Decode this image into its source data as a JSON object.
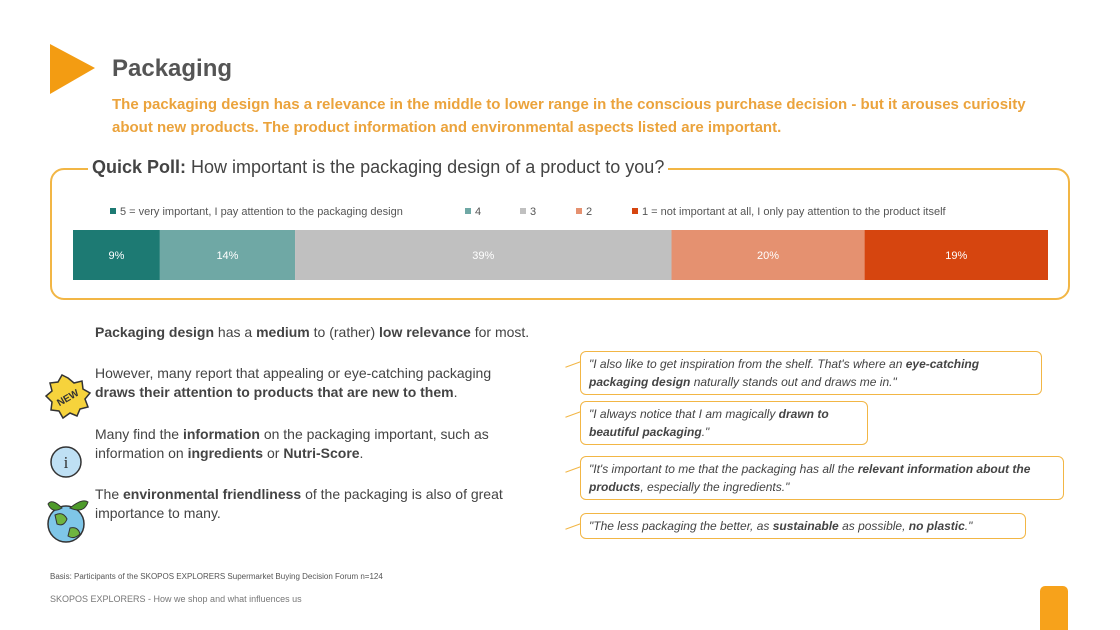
{
  "header": {
    "title": "Packaging",
    "subtitle": "The packaging design has a relevance in the middle to lower range in the conscious purchase decision - but it arouses curiosity about new products. The product information and environmental aspects listed are important."
  },
  "chart_data": {
    "type": "stacked-bar",
    "orientation": "horizontal",
    "title_label": "Quick Poll:",
    "title": "How important is the packaging design of a product to you?",
    "series": [
      {
        "name": "5 =  very important, I pay attention to the packaging design",
        "color": "#1d7a73",
        "values": [
          9
        ],
        "value_labels": [
          "9%"
        ]
      },
      {
        "name": "4",
        "color": "#6fa8a5",
        "values": [
          14
        ],
        "value_labels": [
          "14%"
        ]
      },
      {
        "name": "3",
        "color": "#c0c0c0",
        "values": [
          39
        ],
        "value_labels": [
          "39%"
        ]
      },
      {
        "name": "2",
        "color": "#e59170",
        "values": [
          20
        ],
        "value_labels": [
          "20%"
        ]
      },
      {
        "name": "1 =  not important at all, I only pay attention to the product itself",
        "color": "#d6450f",
        "values": [
          19
        ],
        "value_labels": [
          "19%"
        ]
      }
    ],
    "legend": "top"
  },
  "paragraphs": [
    [
      {
        "text": "Packaging design",
        "bold": true
      },
      {
        "text": " has a ",
        "bold": false
      },
      {
        "text": "medium",
        "bold": true
      },
      {
        "text": " to (rather) ",
        "bold": false
      },
      {
        "text": "low relevance",
        "bold": true
      },
      {
        "text": " for most.",
        "bold": false
      }
    ],
    [
      {
        "text": "However, many report that appealing or eye-catching packaging ",
        "bold": false
      },
      {
        "text": "draws their attention to products that are new to them",
        "bold": true
      },
      {
        "text": ".",
        "bold": false
      }
    ],
    [
      {
        "text": "Many find the ",
        "bold": false
      },
      {
        "text": "information",
        "bold": true
      },
      {
        "text": " on the packaging important, such as information on ",
        "bold": false
      },
      {
        "text": "ingredients",
        "bold": true
      },
      {
        "text": " or ",
        "bold": false
      },
      {
        "text": "Nutri-Score",
        "bold": true
      },
      {
        "text": ".",
        "bold": false
      }
    ],
    [
      {
        "text": "The ",
        "bold": false
      },
      {
        "text": "environmental friendliness",
        "bold": true
      },
      {
        "text": " of the packaging is also of great importance to many.",
        "bold": false
      }
    ]
  ],
  "quotes": [
    [
      {
        "text": "\"I also like to get inspiration from the shelf. That's where an ",
        "bold": false
      },
      {
        "text": "eye-catching packaging design",
        "bold": true
      },
      {
        "text": " naturally stands out and draws me in.\"",
        "bold": false
      }
    ],
    [
      {
        "text": "\"I always notice that I am magically ",
        "bold": false
      },
      {
        "text": "drawn to beautiful packaging",
        "bold": true
      },
      {
        "text": ".\"",
        "bold": false
      }
    ],
    [
      {
        "text": "\"It's important to me that the packaging has all the ",
        "bold": false
      },
      {
        "text": "relevant information about the products",
        "bold": true
      },
      {
        "text": ", especially the ingredients.\"",
        "bold": false
      }
    ],
    [
      {
        "text": "\"The less packaging the better, as ",
        "bold": false
      },
      {
        "text": "sustainable",
        "bold": true
      },
      {
        "text": " as possible, ",
        "bold": false
      },
      {
        "text": "no plastic",
        "bold": true
      },
      {
        "text": ".\"",
        "bold": false
      }
    ]
  ],
  "icons": {
    "new_label": "NEW",
    "info_label": "i"
  },
  "footer": {
    "basis": "Basis: Participants of the SKOPOS EXPLORERS Supermarket Buying Decision Forum n=124",
    "source": "SKOPOS EXPLORERS - How we shop and what influences us"
  }
}
